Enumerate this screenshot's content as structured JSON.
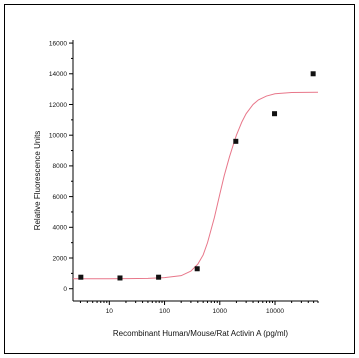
{
  "chart_data": {
    "type": "scatter",
    "title": "",
    "xlabel": "Recombinant Human/Mouse/Rat Activin A (pg/ml)",
    "ylabel": "Relative Fluorescence Units",
    "x_scale": "log",
    "xlim": [
      2.2,
      60000
    ],
    "ylim": [
      -800,
      16200
    ],
    "x_ticks": [
      10,
      100,
      1000,
      10000
    ],
    "x_tick_labels": [
      "10",
      "100",
      "1000",
      "10000"
    ],
    "y_ticks": [
      0,
      2000,
      4000,
      6000,
      8000,
      10000,
      12000,
      14000,
      16000
    ],
    "y_tick_labels": [
      "0",
      "2000",
      "4000",
      "6000",
      "8000",
      "10000",
      "12000",
      "14000",
      "16000"
    ],
    "grid": false,
    "legend": "none",
    "series": [
      {
        "x": [
          3.05,
          15.6,
          78,
          390,
          1950,
          9800,
          49000
        ],
        "y": [
          750,
          700,
          750,
          1300,
          9600,
          11400,
          14000
        ]
      }
    ],
    "fit_curve": {
      "x": [
        2.2,
        5,
        10,
        20,
        50,
        100,
        200,
        300,
        400,
        500,
        600,
        800,
        1000,
        1200,
        1500,
        1800,
        2000,
        2500,
        3000,
        4000,
        5000,
        7000,
        10000,
        20000,
        60000
      ],
      "y": [
        650,
        650,
        652,
        655,
        675,
        720,
        850,
        1150,
        1600,
        2200,
        3000,
        4650,
        6150,
        7350,
        8600,
        9500,
        10000,
        10850,
        11400,
        12000,
        12300,
        12550,
        12700,
        12780,
        12800
      ]
    },
    "colors": {
      "points": "#111111",
      "fit_line": "#e8778a",
      "axes": "#000000",
      "frame": "#000000"
    }
  }
}
